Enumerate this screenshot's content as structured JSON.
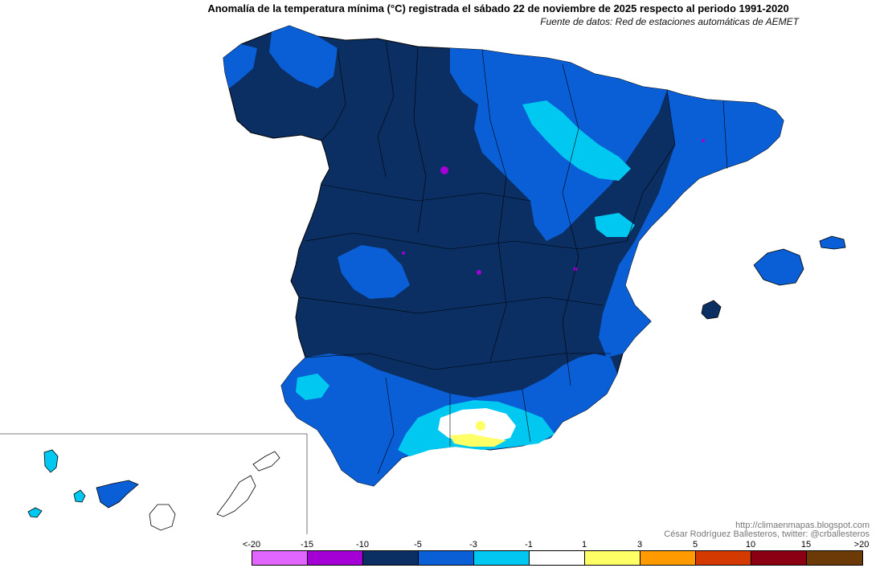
{
  "title": "Anomalía de la temperatura mínima (°C) registrada el sábado 22 de noviembre de 2025 respecto al periodo 1991-2020",
  "subtitle": "Fuente de datos: Red de estaciones automáticas de AEMET",
  "credits": {
    "url": "http://climaenmapas.blogspot.com",
    "author": "César Rodríguez Ballesteros, twitter: @crballesteros"
  },
  "legend": {
    "ticks": [
      "<-20",
      "-15",
      "-10",
      "-5",
      "-3",
      "-1",
      "1",
      "3",
      "5",
      "10",
      "15",
      ">20"
    ],
    "colors": [
      "#e066ff",
      "#a400d6",
      "#0b2f63",
      "#0a5fd6",
      "#00c8f0",
      "#ffffff",
      "#ffff66",
      "#ff9a00",
      "#d43a00",
      "#8c0014",
      "#6b3a07"
    ]
  },
  "map_colors": {
    "very_cold": "#0b2f63",
    "cold": "#0a5fd6",
    "cool": "#00c8f0",
    "neutral": "#ffffff",
    "warm": "#ffff66",
    "extreme_cold": "#a400d6"
  }
}
